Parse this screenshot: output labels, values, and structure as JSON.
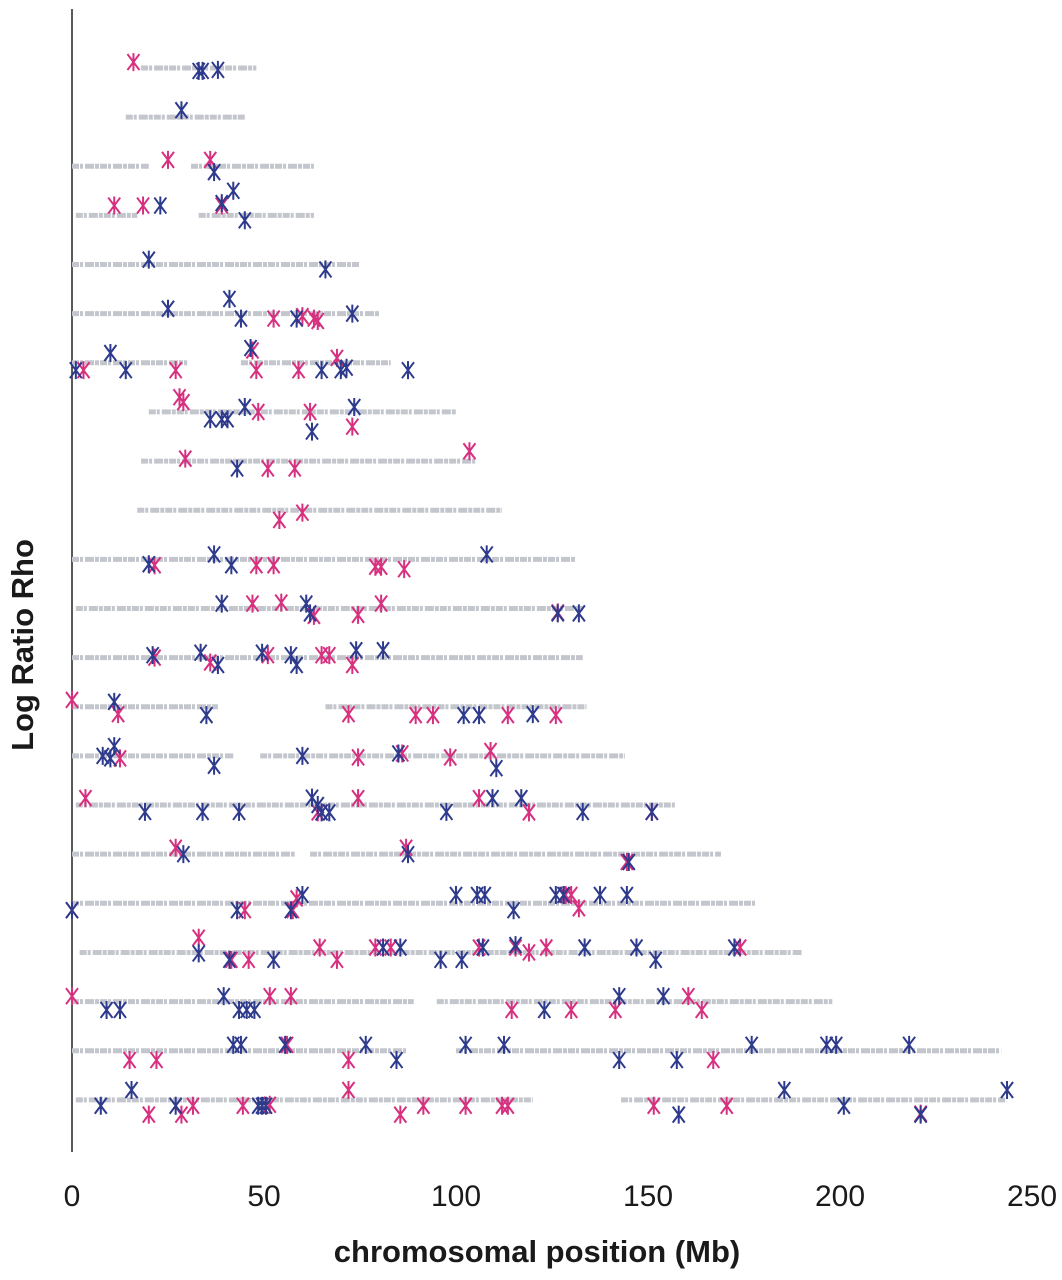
{
  "chart_data": {
    "type": "scatter",
    "x_label": "chromosomal position (Mb)",
    "y_label": "Log Ratio Rho",
    "xlim": [
      0,
      250
    ],
    "xticks": [
      0,
      50,
      100,
      150,
      200,
      250
    ],
    "ylim": [
      0,
      23.2
    ],
    "track_color": "#c3c6cc",
    "tracks": [
      {
        "y": 22,
        "segments": [
          [
            18,
            48
          ]
        ]
      },
      {
        "y": 21,
        "segments": [
          [
            14,
            45
          ]
        ]
      },
      {
        "y": 20,
        "segments": [
          [
            0,
            20
          ],
          [
            31,
            63
          ]
        ]
      },
      {
        "y": 19,
        "segments": [
          [
            1,
            17
          ],
          [
            33,
            63
          ]
        ]
      },
      {
        "y": 18,
        "segments": [
          [
            0,
            75
          ]
        ]
      },
      {
        "y": 17,
        "segments": [
          [
            0,
            80
          ]
        ]
      },
      {
        "y": 16,
        "segments": [
          [
            0,
            30
          ],
          [
            44,
            83
          ]
        ]
      },
      {
        "y": 15,
        "segments": [
          [
            20,
            100
          ]
        ]
      },
      {
        "y": 14,
        "segments": [
          [
            18,
            105
          ]
        ]
      },
      {
        "y": 13,
        "segments": [
          [
            17,
            112
          ]
        ]
      },
      {
        "y": 12,
        "segments": [
          [
            0,
            131
          ]
        ]
      },
      {
        "y": 11,
        "segments": [
          [
            1,
            133
          ]
        ]
      },
      {
        "y": 10,
        "segments": [
          [
            0,
            133
          ]
        ]
      },
      {
        "y": 9,
        "segments": [
          [
            0,
            38
          ],
          [
            66,
            134
          ]
        ]
      },
      {
        "y": 8,
        "segments": [
          [
            0,
            42
          ],
          [
            49,
            144
          ]
        ]
      },
      {
        "y": 7,
        "segments": [
          [
            1,
            157
          ]
        ]
      },
      {
        "y": 6,
        "segments": [
          [
            0,
            58
          ],
          [
            62,
            169
          ]
        ]
      },
      {
        "y": 5,
        "segments": [
          [
            0,
            178
          ]
        ]
      },
      {
        "y": 4,
        "segments": [
          [
            2,
            190
          ]
        ]
      },
      {
        "y": 3,
        "segments": [
          [
            0,
            89
          ],
          [
            95,
            198
          ]
        ]
      },
      {
        "y": 2,
        "segments": [
          [
            0,
            87
          ],
          [
            100,
            242
          ]
        ]
      },
      {
        "y": 1,
        "segments": [
          [
            1,
            120
          ],
          [
            143,
            243
          ]
        ]
      }
    ],
    "series": [
      {
        "color": "#d6307f",
        "x": [
          16,
          25,
          36,
          11,
          18.5,
          39,
          52.5,
          60,
          63,
          64,
          3,
          27,
          47,
          48,
          59,
          69,
          28,
          29,
          48.5,
          62,
          73,
          29.5,
          51,
          58,
          103.5,
          54,
          60,
          21.5,
          48,
          52.5,
          79,
          80.5,
          86.5,
          47,
          54.5,
          63,
          74.5,
          80.5,
          126.5,
          21.5,
          36,
          51,
          65,
          67,
          73,
          0,
          12,
          72,
          89.5,
          94,
          113.5,
          126,
          12.5,
          74.5,
          86,
          98.5,
          109,
          3.5,
          74.5,
          106,
          119,
          64,
          151,
          27,
          87,
          144.5,
          0,
          45,
          58.5,
          57.5,
          128.5,
          130,
          132,
          33,
          41.5,
          46,
          64.5,
          69,
          79,
          83,
          106,
          115.5,
          119,
          123.5,
          174,
          0,
          51.5,
          57,
          114.5,
          130,
          141.5,
          160.5,
          164,
          15,
          22,
          56,
          72,
          167,
          20,
          28.5,
          31.5,
          44.5,
          51.5,
          72,
          85.5,
          91.5,
          102.5,
          112,
          113.5,
          151.5,
          170.5,
          221
        ],
        "values": [
          22.12,
          20.13,
          20.13,
          19.2,
          19.2,
          19.2,
          16.9,
          16.95,
          16.9,
          16.85,
          15.85,
          15.85,
          16.25,
          15.85,
          15.85,
          16.1,
          15.3,
          15.2,
          15.0,
          15.0,
          14.7,
          14.05,
          13.85,
          13.85,
          14.2,
          12.8,
          12.95,
          11.88,
          11.88,
          11.88,
          11.85,
          11.85,
          11.8,
          11.1,
          11.12,
          10.85,
          10.87,
          11.1,
          10.92,
          10,
          9.9,
          10.05,
          10.05,
          10.05,
          9.85,
          9.14,
          8.85,
          8.85,
          8.83,
          8.83,
          8.83,
          8.83,
          7.95,
          7.97,
          8.05,
          7.97,
          8.1,
          7.14,
          7.14,
          7.14,
          6.85,
          6.85,
          6.86,
          6.13,
          6.13,
          5.84,
          4.86,
          4.86,
          5.1,
          4.86,
          5.17,
          5.17,
          4.9,
          4.3,
          3.85,
          3.85,
          4.1,
          3.85,
          4.1,
          4.1,
          4.1,
          4.1,
          4,
          4.1,
          4.1,
          3.11,
          3.11,
          3.11,
          2.83,
          2.83,
          2.83,
          3.11,
          2.83,
          1.81,
          1.81,
          2.12,
          1.81,
          1.81,
          0.7,
          0.7,
          0.88,
          0.88,
          0.9,
          1.2,
          0.7,
          0.88,
          0.88,
          0.88,
          0.88,
          0.88,
          0.88,
          0.72
        ]
      },
      {
        "color": "#2e3a8c",
        "x": [
          33,
          34,
          38,
          28.5,
          37,
          23,
          39,
          42,
          45,
          20,
          66,
          25,
          41,
          44,
          58.5,
          73,
          1,
          10,
          14,
          46.5,
          65,
          70,
          71.5,
          87.5,
          36,
          39,
          40.5,
          45,
          62.5,
          73.5,
          43,
          37,
          20,
          41.5,
          108,
          39,
          61,
          62,
          126.5,
          132,
          21,
          33.5,
          38,
          49.5,
          57,
          58.5,
          74,
          81,
          11,
          35,
          102,
          106,
          120,
          8,
          10,
          11,
          37,
          60,
          85,
          110.5,
          19,
          34,
          43.5,
          62.5,
          64,
          65,
          67,
          97.5,
          109.5,
          117,
          133,
          151,
          29,
          87.5,
          145,
          0,
          43,
          57,
          60,
          100,
          105.5,
          107.5,
          115,
          126,
          128,
          137.5,
          144.5,
          33,
          41,
          52.5,
          81,
          85.5,
          96,
          101.5,
          107,
          115.5,
          133.5,
          147,
          152,
          172.5,
          9,
          12.5,
          39.5,
          43.5,
          45.5,
          47.5,
          123,
          142.5,
          154,
          42,
          44,
          55.5,
          76.5,
          84.5,
          102.5,
          112.5,
          142.5,
          157.5,
          177,
          196.5,
          199,
          218,
          7.5,
          15.5,
          27,
          48.5,
          49.5,
          50.5,
          158,
          185.5,
          201,
          221,
          243.5
        ],
        "values": [
          21.94,
          21.94,
          21.96,
          21.14,
          19.88,
          19.2,
          19.25,
          19.5,
          18.9,
          18.1,
          17.9,
          17.1,
          17.3,
          16.9,
          16.9,
          17,
          15.85,
          16.2,
          15.85,
          16.3,
          15.85,
          15.85,
          15.9,
          15.85,
          14.85,
          14.85,
          14.85,
          15.1,
          14.6,
          15.1,
          13.85,
          12.1,
          11.9,
          11.88,
          12.1,
          11.1,
          11.1,
          10.9,
          10.9,
          10.9,
          10.05,
          10.1,
          9.85,
          10.1,
          10.05,
          9.85,
          10.15,
          10.15,
          9.1,
          8.83,
          8.83,
          8.83,
          8.85,
          8,
          7.95,
          8.2,
          7.8,
          8,
          8.05,
          7.75,
          6.86,
          6.86,
          6.86,
          7.15,
          7,
          6.85,
          6.85,
          6.86,
          7.14,
          7.14,
          6.86,
          6.86,
          6,
          6,
          5.84,
          4.86,
          4.86,
          4.86,
          5.17,
          5.17,
          5.17,
          5.17,
          4.86,
          5.17,
          5.17,
          5.17,
          5.17,
          3.98,
          3.85,
          3.85,
          4.1,
          4.1,
          3.85,
          3.85,
          4.1,
          4.15,
          4.1,
          4.1,
          3.85,
          4.1,
          2.83,
          2.83,
          3.11,
          2.83,
          2.83,
          2.83,
          2.83,
          3.11,
          3.11,
          2.12,
          2.12,
          2.12,
          2.12,
          1.81,
          2.12,
          2.12,
          1.81,
          1.81,
          2.12,
          2.12,
          2.12,
          2.12,
          0.88,
          1.2,
          0.88,
          0.88,
          0.88,
          0.88,
          0.7,
          1.2,
          0.88,
          0.7,
          1.2
        ]
      }
    ]
  }
}
